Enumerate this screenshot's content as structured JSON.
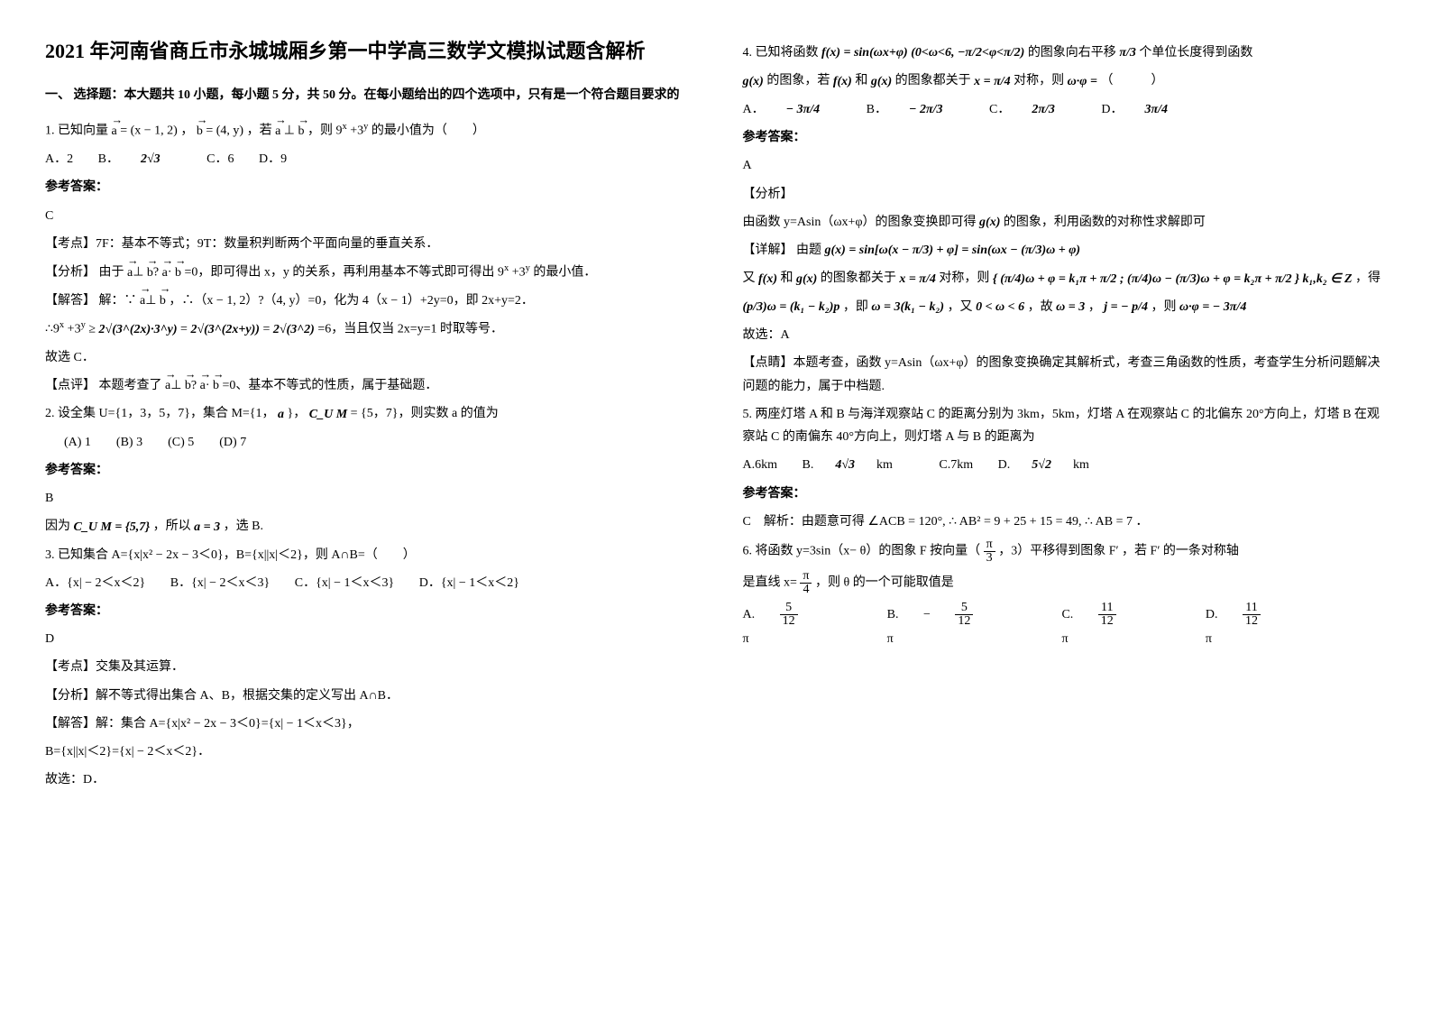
{
  "title": "2021 年河南省商丘市永城城厢乡第一中学高三数学文模拟试题含解析",
  "sec1_head": "一、 选择题：本大题共 10 小题，每小题 5 分，共 50 分。在每小题给出的四个选项中，只有是一个符合题目要求的",
  "q1": {
    "stem_a": "1. 已知向量",
    "stem_b": "= (x − 1, 2) ，",
    "stem_c": "= (4, y) ，若",
    "stem_d": "⊥",
    "stem_e": "，则 9",
    "stem_f": "+3",
    "stem_g": " 的最小值为（　　）",
    "optA": "A．2",
    "optB_pre": "B．",
    "optB_val": "2√3",
    "optC": "C．6",
    "optD": "D．9",
    "ans_label": "参考答案：",
    "ans": "C",
    "kd_label": "【考点】",
    "kd": "7F：基本不等式；9T：数量积判断两个平面向量的垂直关系．",
    "fx_label": "【分析】",
    "fx_a": "由于",
    "fx_b": "⊥",
    "fx_c": "?",
    "fx_d": "·",
    "fx_e": "=0，即可得出 x，y 的关系，再利用基本不等式即可得出 9",
    "fx_f": "+3",
    "fx_g": " 的最小值．",
    "jd_label": "【解答】",
    "jd1_a": "解：∵",
    "jd1_b": "⊥",
    "jd1_c": "，∴（x − 1, 2）?（4, y）=0，化为 4（x − 1）+2y=0，即 2x+y=2．",
    "jd2_a": "∴9",
    "jd2_b": "+3",
    "jd2_c": " ≥ ",
    "jd2_d": "2√(3^(2x)·3^y)",
    "jd2_e": " = ",
    "jd2_f": "2√(3^(2x+y))",
    "jd2_g": " = ",
    "jd2_h": "2√(3^2)",
    "jd2_i": " =6，当且仅当 2x=y=1 时取等号．",
    "jd3": "故选 C．",
    "dp_label": "【点评】",
    "dp_a": "本题考查了",
    "dp_b": "⊥",
    "dp_c": "?",
    "dp_d": "·",
    "dp_e": "=0、基本不等式的性质，属于基础题．"
  },
  "q2": {
    "stem_a": "2. 设全集 U={1，3，5，7}，集合 M={1，",
    "stem_b": "}，",
    "stem_c": " = {5，7}，则实数 a 的值为",
    "a_sym": "a",
    "cu": "C_U M",
    "opts": "(A) 1　　(B) 3　　(C) 5　　(D) 7",
    "ans_label": "参考答案：",
    "ans": "B",
    "exp_a": "因为",
    "exp_b": "C_U M = {5,7}",
    "exp_c": "，所以",
    "exp_d": "a = 3",
    "exp_e": "，选 B."
  },
  "q3": {
    "stem": "3. 已知集合 A={x|x² − 2x − 3＜0}，B={x||x|＜2}，则 A∩B=（　　）",
    "optA": "A．{x| − 2＜x＜2}",
    "optB": "B．{x| − 2＜x＜3}",
    "optC": "C．{x| − 1＜x＜3}",
    "optD": "D．{x| − 1＜x＜2}",
    "ans_label": "参考答案：",
    "ans": "D",
    "kd_label": "【考点】",
    "kd": "交集及其运算．",
    "fx_label": "【分析】",
    "fx": "解不等式得出集合 A、B，根据交集的定义写出 A∩B．",
    "jd_label": "【解答】",
    "jd1": "解：集合 A={x|x² − 2x − 3＜0}={x| − 1＜x＜3}，",
    "jd2": "B={x||x|＜2}={x| − 2＜x＜2}．",
    "jd3": "故选：D．"
  },
  "q4": {
    "stem_a": "4. 已知将函数",
    "f_expr": "f(x) = sin(ωx+φ) (0<ω<6, −π/2<φ<π/2)",
    "stem_b": "的图象向右平移",
    "shift": "π/3",
    "stem_c": "个单位长度得到函数",
    "g": "g(x)",
    "stem_d": "的图象，若",
    "fx": "f(x)",
    "stem_e": "和",
    "stem_f": "的图象都关于",
    "axis": "x = π/4",
    "stem_g": "对称，则",
    "prod": "ω·φ =",
    "stem_h": "（　　　）",
    "optA_pre": "A．",
    "optA": "− 3π/4",
    "optB_pre": "B．",
    "optB": "− 2π/3",
    "optC_pre": "C．",
    "optC": "2π/3",
    "optD_pre": "D．",
    "optD": "3π/4",
    "ans_label": "参考答案：",
    "ans": "A",
    "fx_label": "【分析】",
    "fx_txt_a": "由函数 y=Asin（ωx+φ）的图象变换即可得",
    "fx_txt_b": "的图象，利用函数的对称性求解即可",
    "xj_label": "【详解】",
    "xj_a": "由题",
    "g_expr": "g(x) = sin[ω(x − π/3) + φ] = sin(ωx − (π/3)ω + φ)",
    "xj_b": "又",
    "xj_c": "和",
    "xj_d": "的图象都关于",
    "xj_e": "对称，则",
    "sys": "{ (π/4)ω + φ = k₁π + π/2 ; (π/4)ω − (π/3)ω + φ = k₂π + π/2 }  k₁,k₂ ∈ Z",
    "xj_f": "，得",
    "line_a": "(p/3)ω = (k₁ − k₂)p",
    "line_b": "，即",
    "line_c": "ω = 3(k₁ − k₂)",
    "line_d": "，又",
    "line_e": "0 < ω < 6",
    "line_f": "，故",
    "line_g": "ω = 3",
    "line_h": "，",
    "line_i": "j = − p/4",
    "line_j": "，则",
    "line_k": "ω·φ = − 3π/4",
    "xj_end": "故选：A",
    "dp_label": "【点睛】",
    "dp": "本题考查，函数 y=Asin（ωx+φ）的图象变换确定其解析式，考查三角函数的性质，考查学生分析问题解决问题的能力，属于中档题."
  },
  "q5": {
    "stem": "5. 两座灯塔 A 和 B 与海洋观察站 C 的距离分别为 3km，5km，灯塔 A 在观察站 C 的北偏东 20°方向上，灯塔 B 在观察站 C 的南偏东 40°方向上，则灯塔 A 与 B 的距离为",
    "optA": "A.6km",
    "optB_pre": "B.",
    "optB": "4√3",
    "optB_suf": "km",
    "optC": "C.7km",
    "optD_pre": "D.",
    "optD": "5√2",
    "optD_suf": "km",
    "ans_label": "参考答案：",
    "ans_a": "C　解析：由题意可得",
    "ans_b": "∠ACB = 120°, ∴ AB² = 9 + 25 + 15 = 49, ∴ AB = 7",
    "ans_c": "．"
  },
  "q6": {
    "stem_a": "6. 将函数 y=3sin（x− θ）的图象 F 按向量（",
    "vec": "π/3",
    "stem_b": "，3）平移得到图象 F′ ，若 F′ 的一条对称轴",
    "stem_c": "是直线 x=",
    "axis": "π/4",
    "stem_d": "，则 θ 的一个可能取值是",
    "optA_pre": "A.",
    "optA_num": "5",
    "optA_den": "12",
    "optA_suf": "π",
    "optB_pre": "B.",
    "optB_sign": "−",
    "optB_num": "5",
    "optB_den": "12",
    "optB_suf": "π",
    "optC_pre": "C.",
    "optC_num": "11",
    "optC_den": "12",
    "optC_suf": "π",
    "optD_pre": "D.",
    "optD_num": "11",
    "optD_den": "12",
    "optD_suf": "π"
  }
}
